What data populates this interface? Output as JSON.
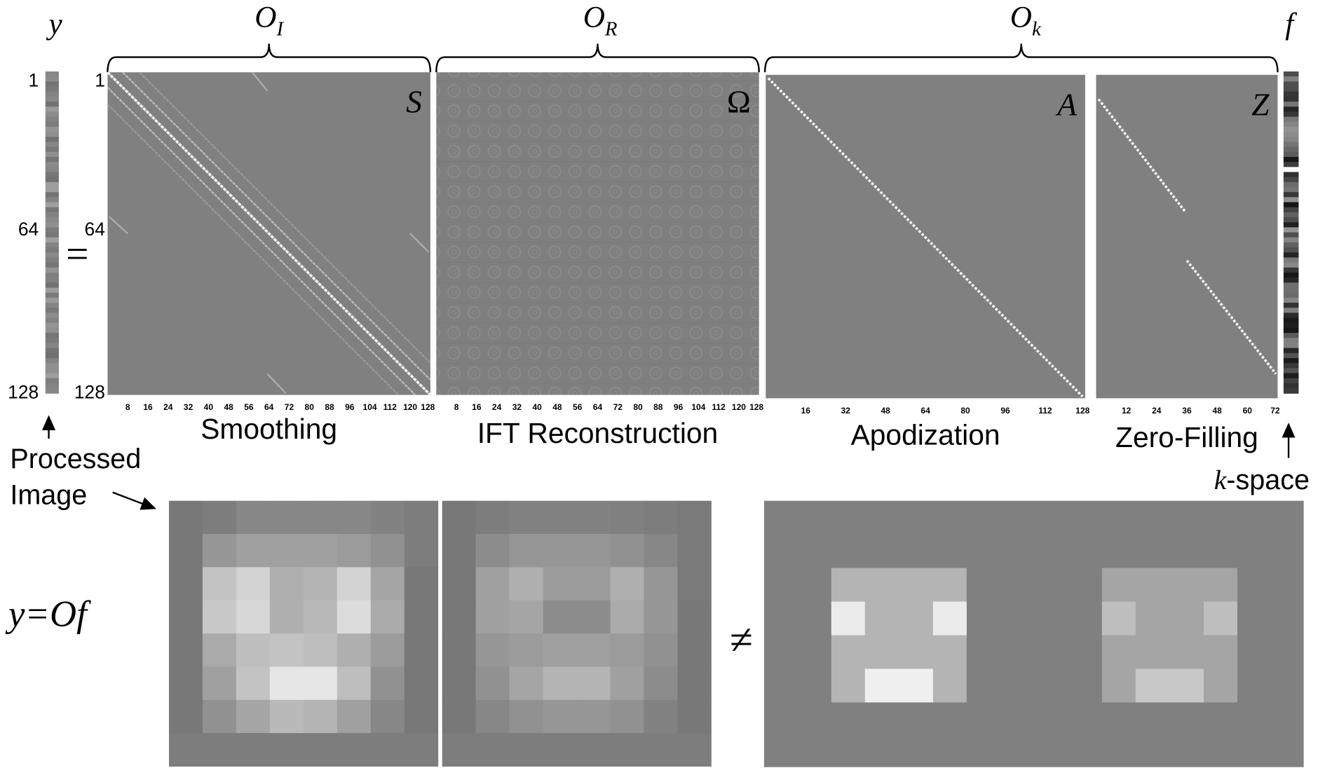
{
  "equation": {
    "lhs": "y",
    "equals": "=",
    "rhs": "f"
  },
  "operators": [
    {
      "symbol": "O",
      "subscript": "I"
    },
    {
      "symbol": "O",
      "subscript": "R"
    },
    {
      "symbol": "O",
      "subscript": "k"
    }
  ],
  "y_axis_labels": [
    "1",
    "64",
    "128"
  ],
  "matrix_axis_labels": [
    "1",
    "64",
    "128"
  ],
  "matrices": [
    {
      "symbol": "S",
      "caption": "Smoothing",
      "xticks": [
        8,
        16,
        24,
        32,
        40,
        48,
        56,
        64,
        72,
        80,
        88,
        96,
        104,
        112,
        120,
        128
      ]
    },
    {
      "symbol": "Ω",
      "caption": "IFT Reconstruction",
      "xticks": [
        8,
        16,
        24,
        32,
        40,
        48,
        56,
        64,
        72,
        80,
        88,
        96,
        104,
        112,
        120,
        128
      ]
    },
    {
      "symbol": "A",
      "caption": "Apodization",
      "xticks": [
        16,
        32,
        48,
        64,
        80,
        96,
        112,
        128
      ]
    },
    {
      "symbol": "Z",
      "caption": "Zero-Filling",
      "xticks": [
        12,
        24,
        36,
        48,
        60,
        72
      ]
    }
  ],
  "processed_image_label": [
    "Processed",
    "Image"
  ],
  "kspace_label": {
    "italic": "k",
    "rest": "-space"
  },
  "bottom_equation": "y=Of",
  "not_equal": "≠"
}
